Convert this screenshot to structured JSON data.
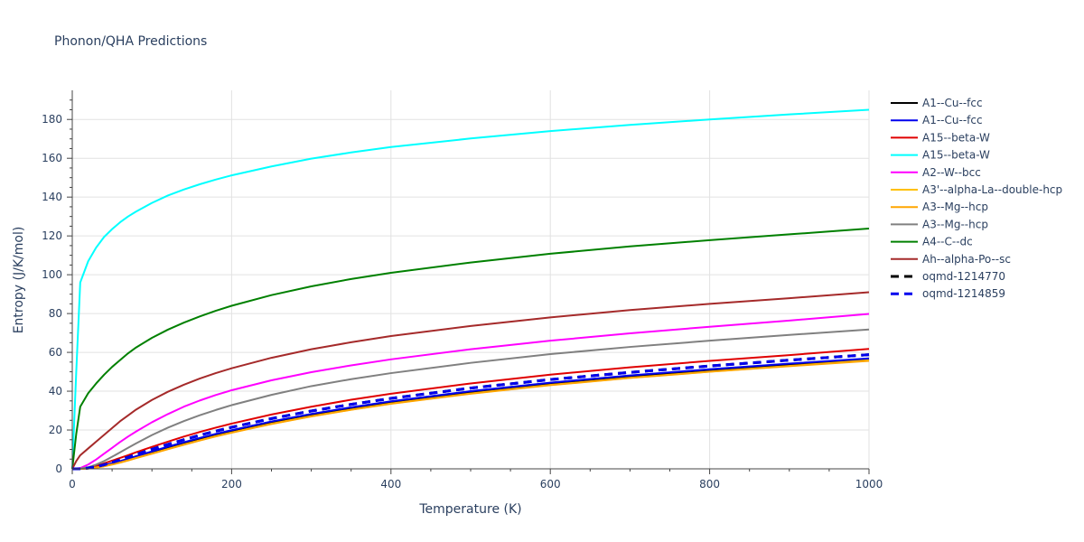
{
  "chart_data": {
    "type": "line",
    "title": "Phonon/QHA Predictions",
    "xlabel": "Temperature (K)",
    "ylabel": "Entropy (J/K/mol)",
    "xlim": [
      0,
      1000
    ],
    "ylim": [
      0,
      195
    ],
    "x_ticks": [
      0,
      200,
      400,
      600,
      800,
      1000
    ],
    "y_ticks": [
      0,
      20,
      40,
      60,
      80,
      100,
      120,
      140,
      160,
      180
    ],
    "grid": true,
    "legend_position": "right",
    "series": [
      {
        "name": "A1--Cu--fcc",
        "color": "#000000",
        "dash": "solid",
        "x": [
          0,
          10,
          20,
          30,
          40,
          50,
          60,
          70,
          80,
          100,
          120,
          140,
          160,
          180,
          200,
          250,
          300,
          350,
          400,
          500,
          600,
          700,
          800,
          900,
          1000
        ],
        "y": [
          0,
          0.05,
          0.3,
          0.8,
          1.6,
          2.6,
          3.7,
          4.9,
          6.1,
          8.5,
          10.9,
          13.2,
          15.4,
          17.5,
          19.4,
          23.9,
          27.8,
          31.2,
          34.3,
          39.5,
          43.9,
          47.6,
          50.8,
          53.7,
          56.4
        ]
      },
      {
        "name": "A1--Cu--fcc",
        "color": "#0000ee",
        "dash": "solid",
        "x": [
          0,
          10,
          20,
          30,
          40,
          50,
          60,
          70,
          80,
          100,
          120,
          140,
          160,
          180,
          200,
          250,
          300,
          350,
          400,
          500,
          600,
          700,
          800,
          900,
          1000
        ],
        "y": [
          0,
          0.05,
          0.35,
          0.9,
          1.8,
          2.9,
          4.0,
          5.2,
          6.5,
          9.0,
          11.4,
          13.7,
          15.9,
          18.0,
          19.9,
          24.4,
          28.3,
          31.7,
          34.8,
          40.0,
          44.4,
          48.1,
          51.3,
          54.2,
          56.9
        ]
      },
      {
        "name": "A15--beta-W",
        "color": "#e00000",
        "dash": "solid",
        "x": [
          0,
          10,
          20,
          30,
          40,
          50,
          60,
          70,
          80,
          100,
          120,
          140,
          160,
          180,
          200,
          250,
          300,
          350,
          400,
          500,
          600,
          700,
          800,
          900,
          1000
        ],
        "y": [
          0,
          0.1,
          0.6,
          1.5,
          2.8,
          4.2,
          5.6,
          7.0,
          8.5,
          11.3,
          14.0,
          16.6,
          19.0,
          21.2,
          23.3,
          28.0,
          32.0,
          35.6,
          38.7,
          44.0,
          48.5,
          52.3,
          55.6,
          58.6,
          61.8
        ]
      },
      {
        "name": "A15--beta-W",
        "color": "#00ffff",
        "dash": "solid",
        "x": [
          0,
          5,
          10,
          20,
          30,
          40,
          50,
          60,
          70,
          80,
          100,
          120,
          140,
          160,
          180,
          200,
          250,
          300,
          350,
          400,
          500,
          600,
          700,
          800,
          900,
          1000
        ],
        "y": [
          0,
          50,
          96,
          107,
          114,
          119.5,
          123.5,
          127,
          130,
          132.5,
          137,
          140.8,
          143.9,
          146.6,
          149,
          151.2,
          155.8,
          159.8,
          163,
          165.8,
          170.2,
          174,
          177.2,
          180,
          182.6,
          185
        ]
      },
      {
        "name": "A2--W--bcc",
        "color": "#ff00ff",
        "dash": "solid",
        "x": [
          0,
          10,
          20,
          30,
          40,
          50,
          60,
          70,
          80,
          100,
          120,
          140,
          160,
          180,
          200,
          250,
          300,
          350,
          400,
          500,
          600,
          700,
          800,
          900,
          1000
        ],
        "y": [
          0,
          0.4,
          2.2,
          4.8,
          7.8,
          10.8,
          13.8,
          16.6,
          19.2,
          24.0,
          28.2,
          32.0,
          35.2,
          38.0,
          40.5,
          45.6,
          49.8,
          53.3,
          56.4,
          61.6,
          66.0,
          69.8,
          73.2,
          76.4,
          79.8
        ]
      },
      {
        "name": "A3'--alpha-La--double-hcp",
        "color": "#ffc000",
        "dash": "solid",
        "x": [
          0,
          10,
          20,
          30,
          40,
          50,
          60,
          70,
          80,
          100,
          120,
          140,
          160,
          180,
          200,
          250,
          300,
          350,
          400,
          500,
          600,
          700,
          800,
          900,
          1000
        ],
        "y": [
          0,
          0.03,
          0.25,
          0.7,
          1.4,
          2.3,
          3.3,
          4.4,
          5.6,
          7.9,
          10.2,
          12.5,
          14.7,
          16.8,
          18.7,
          23.2,
          27.1,
          30.5,
          33.6,
          38.8,
          43.2,
          46.9,
          50.1,
          53.0,
          55.9
        ]
      },
      {
        "name": "A3--Mg--hcp",
        "color": "#ffa500",
        "dash": "solid",
        "x": [
          0,
          10,
          20,
          30,
          40,
          50,
          60,
          70,
          80,
          100,
          120,
          140,
          160,
          180,
          200,
          250,
          300,
          350,
          400,
          500,
          600,
          700,
          800,
          900,
          1000
        ],
        "y": [
          0,
          0.02,
          0.2,
          0.6,
          1.3,
          2.2,
          3.2,
          4.3,
          5.5,
          7.8,
          10.1,
          12.4,
          14.6,
          16.7,
          18.6,
          23.1,
          27.0,
          30.4,
          33.5,
          38.7,
          43.1,
          46.8,
          50.0,
          52.9,
          55.6
        ]
      },
      {
        "name": "A3--Mg--hcp",
        "color": "#808080",
        "dash": "solid",
        "x": [
          0,
          10,
          20,
          30,
          40,
          50,
          60,
          70,
          80,
          100,
          120,
          140,
          160,
          180,
          200,
          250,
          300,
          350,
          400,
          500,
          600,
          700,
          800,
          900,
          1000
        ],
        "y": [
          0,
          0.1,
          0.8,
          2.2,
          4.0,
          6.2,
          8.5,
          10.8,
          13.1,
          17.4,
          21.2,
          24.6,
          27.6,
          30.3,
          32.8,
          38.1,
          42.6,
          46.2,
          49.3,
          54.6,
          59.1,
          62.8,
          66.0,
          69.0,
          71.8
        ]
      },
      {
        "name": "A4--C--dc",
        "color": "#008000",
        "dash": "solid",
        "x": [
          0,
          5,
          10,
          20,
          30,
          40,
          50,
          60,
          70,
          80,
          100,
          120,
          140,
          160,
          180,
          200,
          250,
          300,
          350,
          400,
          500,
          600,
          700,
          800,
          900,
          1000
        ],
        "y": [
          0,
          18,
          32,
          39,
          44,
          48.5,
          52.5,
          56,
          59.5,
          62.5,
          67.5,
          71.7,
          75.3,
          78.5,
          81.4,
          84,
          89.5,
          94,
          97.8,
          101,
          106.3,
          110.8,
          114.6,
          117.8,
          120.8,
          123.8
        ]
      },
      {
        "name": "Ah--alpha-Po--sc",
        "color": "#a52a2a",
        "dash": "solid",
        "x": [
          0,
          5,
          10,
          20,
          30,
          40,
          50,
          60,
          70,
          80,
          100,
          120,
          140,
          160,
          180,
          200,
          250,
          300,
          350,
          400,
          500,
          600,
          700,
          800,
          900,
          1000
        ],
        "y": [
          0,
          4,
          7,
          10.5,
          14,
          17.5,
          21,
          24.5,
          27.5,
          30.5,
          35.5,
          39.7,
          43.3,
          46.5,
          49.3,
          51.8,
          57.2,
          61.6,
          65.2,
          68.4,
          73.6,
          78.0,
          81.8,
          85.0,
          87.9,
          91.0
        ]
      },
      {
        "name": "oqmd-1214770",
        "color": "#000000",
        "dash": "dash",
        "x": [
          0,
          10,
          20,
          30,
          40,
          50,
          60,
          70,
          80,
          100,
          120,
          140,
          160,
          180,
          200,
          250,
          300,
          350,
          400,
          500,
          600,
          700,
          800,
          900,
          1000
        ],
        "y": [
          0,
          0.05,
          0.4,
          1.1,
          2.1,
          3.3,
          4.6,
          6.0,
          7.4,
          10.1,
          12.6,
          15.0,
          17.3,
          19.4,
          21.4,
          25.9,
          29.8,
          33.2,
          36.3,
          41.6,
          46.0,
          49.7,
          53.0,
          56.0,
          58.8
        ]
      },
      {
        "name": "oqmd-1214859",
        "color": "#0000ee",
        "dash": "dash",
        "x": [
          0,
          10,
          20,
          30,
          40,
          50,
          60,
          70,
          80,
          100,
          120,
          140,
          160,
          180,
          200,
          250,
          300,
          350,
          400,
          500,
          600,
          700,
          800,
          900,
          1000
        ],
        "y": [
          0,
          0.05,
          0.4,
          1.1,
          2.1,
          3.3,
          4.6,
          6.0,
          7.4,
          10.1,
          12.6,
          15.0,
          17.3,
          19.4,
          21.4,
          25.9,
          29.8,
          33.2,
          36.3,
          41.6,
          46.0,
          49.7,
          53.0,
          56.0,
          58.8
        ]
      }
    ]
  }
}
